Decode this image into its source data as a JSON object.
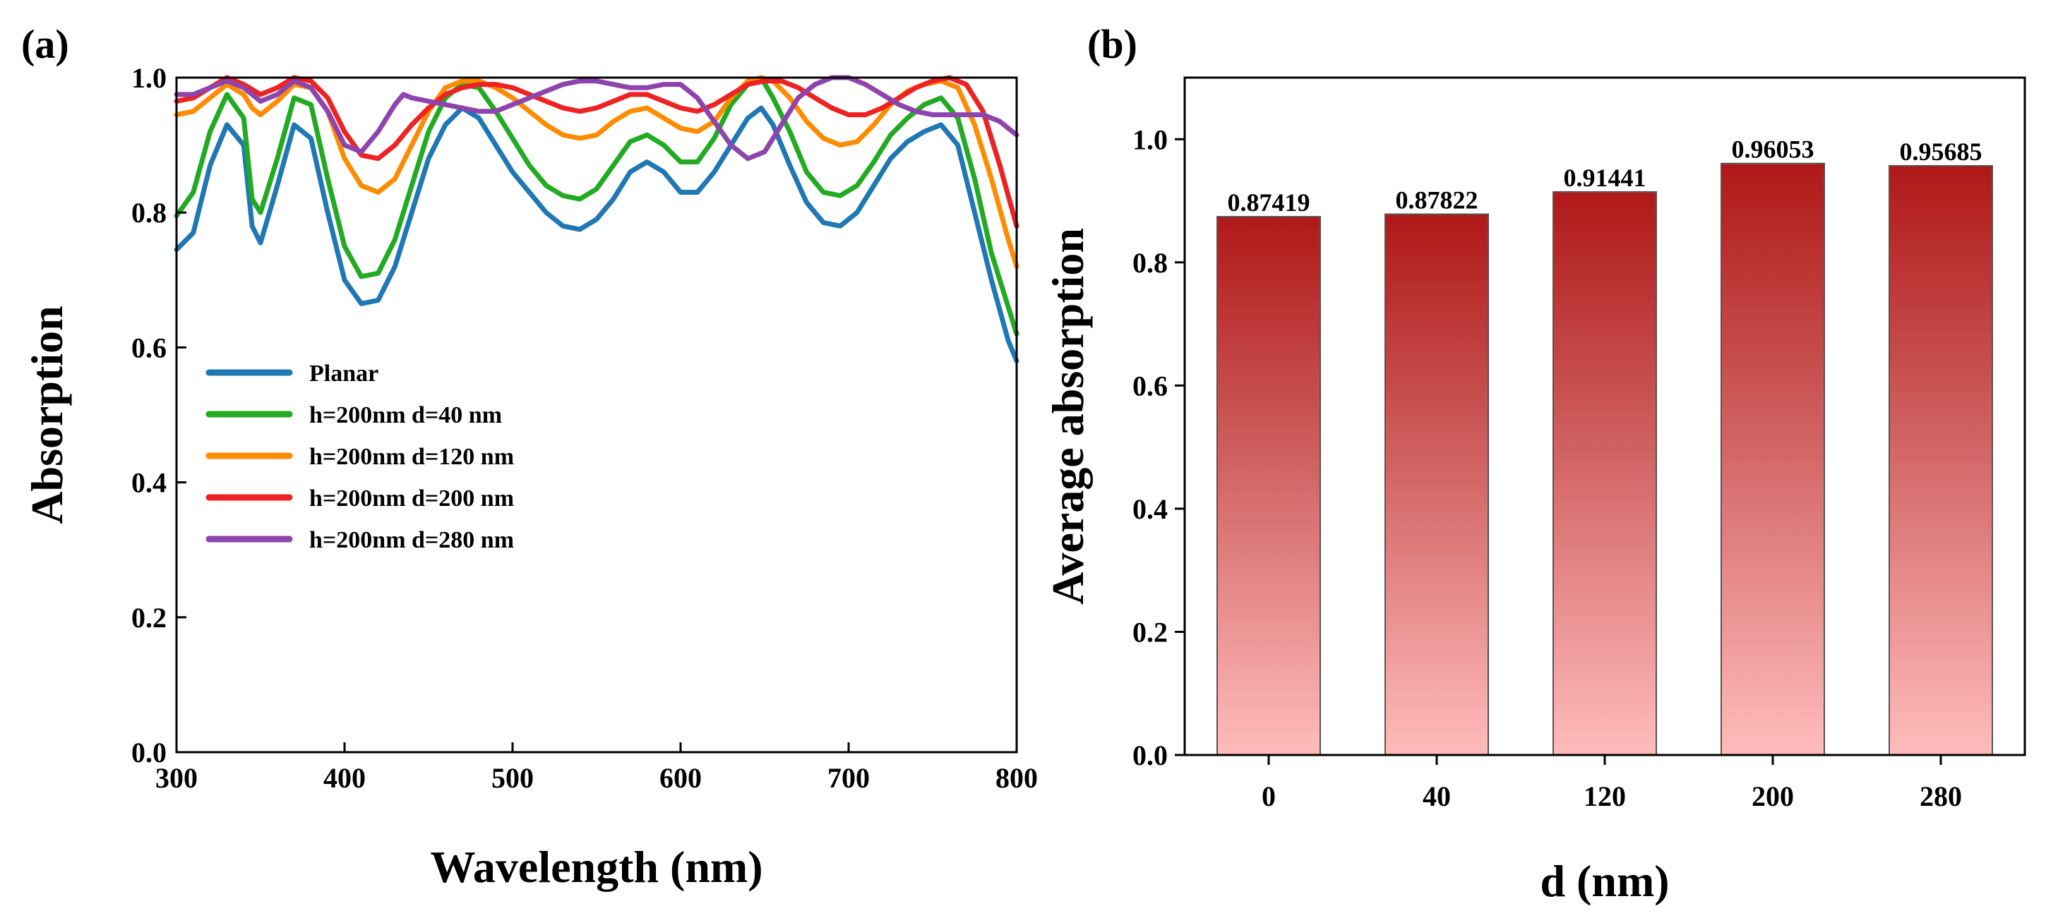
{
  "chart_data": [
    {
      "type": "line",
      "panel_label": "(a)",
      "xlabel": "Wavelength (nm)",
      "ylabel": "Absorption",
      "xlim": [
        300,
        800
      ],
      "ylim": [
        0.0,
        1.0
      ],
      "xticks": [
        300,
        400,
        500,
        600,
        700,
        800
      ],
      "yticks": [
        0.0,
        0.2,
        0.4,
        0.6,
        0.8,
        1.0
      ],
      "legend_position": "center-left",
      "series": [
        {
          "name": "Planar",
          "color": "#1f77b4",
          "points": [
            [
              300,
              0.745
            ],
            [
              310,
              0.77
            ],
            [
              320,
              0.87
            ],
            [
              330,
              0.93
            ],
            [
              340,
              0.9
            ],
            [
              345,
              0.78
            ],
            [
              350,
              0.755
            ],
            [
              360,
              0.84
            ],
            [
              370,
              0.93
            ],
            [
              380,
              0.91
            ],
            [
              390,
              0.8
            ],
            [
              400,
              0.7
            ],
            [
              410,
              0.665
            ],
            [
              420,
              0.67
            ],
            [
              430,
              0.72
            ],
            [
              440,
              0.8
            ],
            [
              450,
              0.88
            ],
            [
              460,
              0.93
            ],
            [
              470,
              0.955
            ],
            [
              480,
              0.94
            ],
            [
              490,
              0.9
            ],
            [
              500,
              0.86
            ],
            [
              510,
              0.83
            ],
            [
              520,
              0.8
            ],
            [
              530,
              0.78
            ],
            [
              540,
              0.775
            ],
            [
              550,
              0.79
            ],
            [
              560,
              0.82
            ],
            [
              570,
              0.86
            ],
            [
              580,
              0.875
            ],
            [
              590,
              0.86
            ],
            [
              600,
              0.83
            ],
            [
              610,
              0.83
            ],
            [
              620,
              0.86
            ],
            [
              630,
              0.9
            ],
            [
              640,
              0.94
            ],
            [
              648,
              0.955
            ],
            [
              655,
              0.93
            ],
            [
              665,
              0.87
            ],
            [
              675,
              0.815
            ],
            [
              685,
              0.785
            ],
            [
              695,
              0.78
            ],
            [
              705,
              0.8
            ],
            [
              715,
              0.84
            ],
            [
              725,
              0.88
            ],
            [
              735,
              0.905
            ],
            [
              745,
              0.92
            ],
            [
              755,
              0.93
            ],
            [
              765,
              0.9
            ],
            [
              775,
              0.8
            ],
            [
              785,
              0.7
            ],
            [
              795,
              0.61
            ],
            [
              800,
              0.58
            ]
          ]
        },
        {
          "name": "h=200nm d=40 nm",
          "color": "#22aa22",
          "points": [
            [
              300,
              0.795
            ],
            [
              310,
              0.83
            ],
            [
              320,
              0.92
            ],
            [
              330,
              0.975
            ],
            [
              340,
              0.94
            ],
            [
              345,
              0.82
            ],
            [
              350,
              0.8
            ],
            [
              360,
              0.88
            ],
            [
              370,
              0.97
            ],
            [
              380,
              0.96
            ],
            [
              390,
              0.85
            ],
            [
              400,
              0.75
            ],
            [
              410,
              0.705
            ],
            [
              420,
              0.71
            ],
            [
              430,
              0.76
            ],
            [
              440,
              0.84
            ],
            [
              450,
              0.92
            ],
            [
              460,
              0.97
            ],
            [
              470,
              0.99
            ],
            [
              480,
              0.985
            ],
            [
              490,
              0.95
            ],
            [
              500,
              0.91
            ],
            [
              510,
              0.87
            ],
            [
              520,
              0.84
            ],
            [
              530,
              0.825
            ],
            [
              540,
              0.82
            ],
            [
              550,
              0.835
            ],
            [
              560,
              0.87
            ],
            [
              570,
              0.905
            ],
            [
              580,
              0.915
            ],
            [
              590,
              0.9
            ],
            [
              600,
              0.875
            ],
            [
              610,
              0.875
            ],
            [
              620,
              0.91
            ],
            [
              630,
              0.96
            ],
            [
              640,
              0.99
            ],
            [
              648,
              1.0
            ],
            [
              655,
              0.97
            ],
            [
              665,
              0.92
            ],
            [
              675,
              0.86
            ],
            [
              685,
              0.83
            ],
            [
              695,
              0.825
            ],
            [
              705,
              0.84
            ],
            [
              715,
              0.875
            ],
            [
              725,
              0.915
            ],
            [
              735,
              0.94
            ],
            [
              745,
              0.96
            ],
            [
              755,
              0.97
            ],
            [
              765,
              0.94
            ],
            [
              775,
              0.85
            ],
            [
              785,
              0.74
            ],
            [
              795,
              0.66
            ],
            [
              800,
              0.62
            ]
          ]
        },
        {
          "name": "h=200nm d=120 nm",
          "color": "#ff8c00",
          "points": [
            [
              300,
              0.945
            ],
            [
              310,
              0.95
            ],
            [
              320,
              0.97
            ],
            [
              330,
              0.99
            ],
            [
              340,
              0.975
            ],
            [
              345,
              0.955
            ],
            [
              350,
              0.945
            ],
            [
              360,
              0.965
            ],
            [
              370,
              0.99
            ],
            [
              380,
              0.985
            ],
            [
              390,
              0.95
            ],
            [
              400,
              0.88
            ],
            [
              410,
              0.84
            ],
            [
              420,
              0.83
            ],
            [
              430,
              0.85
            ],
            [
              440,
              0.9
            ],
            [
              450,
              0.95
            ],
            [
              460,
              0.985
            ],
            [
              470,
              0.995
            ],
            [
              480,
              0.995
            ],
            [
              490,
              0.985
            ],
            [
              500,
              0.97
            ],
            [
              510,
              0.95
            ],
            [
              520,
              0.93
            ],
            [
              530,
              0.915
            ],
            [
              540,
              0.91
            ],
            [
              550,
              0.915
            ],
            [
              560,
              0.935
            ],
            [
              570,
              0.95
            ],
            [
              580,
              0.955
            ],
            [
              590,
              0.94
            ],
            [
              600,
              0.925
            ],
            [
              610,
              0.92
            ],
            [
              620,
              0.935
            ],
            [
              630,
              0.97
            ],
            [
              640,
              0.995
            ],
            [
              648,
              1.0
            ],
            [
              655,
              0.995
            ],
            [
              665,
              0.97
            ],
            [
              675,
              0.935
            ],
            [
              685,
              0.91
            ],
            [
              695,
              0.9
            ],
            [
              705,
              0.905
            ],
            [
              715,
              0.93
            ],
            [
              725,
              0.96
            ],
            [
              735,
              0.98
            ],
            [
              745,
              0.99
            ],
            [
              755,
              0.995
            ],
            [
              765,
              0.985
            ],
            [
              775,
              0.93
            ],
            [
              785,
              0.85
            ],
            [
              795,
              0.76
            ],
            [
              800,
              0.72
            ]
          ]
        },
        {
          "name": "h=200nm d=200 nm",
          "color": "#ee2222",
          "points": [
            [
              300,
              0.965
            ],
            [
              310,
              0.97
            ],
            [
              320,
              0.985
            ],
            [
              330,
              1.0
            ],
            [
              340,
              0.99
            ],
            [
              350,
              0.975
            ],
            [
              360,
              0.985
            ],
            [
              370,
              1.0
            ],
            [
              380,
              0.995
            ],
            [
              390,
              0.97
            ],
            [
              400,
              0.92
            ],
            [
              410,
              0.885
            ],
            [
              420,
              0.88
            ],
            [
              430,
              0.9
            ],
            [
              440,
              0.93
            ],
            [
              450,
              0.955
            ],
            [
              460,
              0.975
            ],
            [
              470,
              0.985
            ],
            [
              480,
              0.99
            ],
            [
              490,
              0.99
            ],
            [
              500,
              0.985
            ],
            [
              510,
              0.975
            ],
            [
              520,
              0.965
            ],
            [
              530,
              0.955
            ],
            [
              540,
              0.95
            ],
            [
              550,
              0.955
            ],
            [
              560,
              0.965
            ],
            [
              570,
              0.975
            ],
            [
              580,
              0.975
            ],
            [
              590,
              0.965
            ],
            [
              600,
              0.955
            ],
            [
              610,
              0.95
            ],
            [
              620,
              0.96
            ],
            [
              630,
              0.975
            ],
            [
              640,
              0.99
            ],
            [
              650,
              0.995
            ],
            [
              660,
              0.995
            ],
            [
              670,
              0.985
            ],
            [
              680,
              0.97
            ],
            [
              690,
              0.955
            ],
            [
              700,
              0.945
            ],
            [
              710,
              0.945
            ],
            [
              720,
              0.955
            ],
            [
              730,
              0.97
            ],
            [
              740,
              0.985
            ],
            [
              750,
              0.995
            ],
            [
              760,
              1.0
            ],
            [
              770,
              0.99
            ],
            [
              780,
              0.95
            ],
            [
              790,
              0.87
            ],
            [
              800,
              0.78
            ]
          ]
        },
        {
          "name": "h=200nm d=280 nm",
          "color": "#8e44ad",
          "points": [
            [
              300,
              0.975
            ],
            [
              310,
              0.975
            ],
            [
              320,
              0.985
            ],
            [
              330,
              0.995
            ],
            [
              340,
              0.985
            ],
            [
              350,
              0.965
            ],
            [
              360,
              0.975
            ],
            [
              370,
              0.995
            ],
            [
              380,
              0.985
            ],
            [
              390,
              0.95
            ],
            [
              400,
              0.9
            ],
            [
              410,
              0.89
            ],
            [
              420,
              0.92
            ],
            [
              430,
              0.96
            ],
            [
              435,
              0.975
            ],
            [
              440,
              0.97
            ],
            [
              450,
              0.965
            ],
            [
              460,
              0.96
            ],
            [
              470,
              0.955
            ],
            [
              480,
              0.95
            ],
            [
              490,
              0.95
            ],
            [
              500,
              0.96
            ],
            [
              510,
              0.97
            ],
            [
              520,
              0.98
            ],
            [
              530,
              0.99
            ],
            [
              540,
              0.995
            ],
            [
              550,
              0.995
            ],
            [
              560,
              0.99
            ],
            [
              570,
              0.985
            ],
            [
              580,
              0.985
            ],
            [
              590,
              0.99
            ],
            [
              600,
              0.99
            ],
            [
              610,
              0.97
            ],
            [
              620,
              0.935
            ],
            [
              630,
              0.9
            ],
            [
              640,
              0.88
            ],
            [
              650,
              0.89
            ],
            [
              660,
              0.93
            ],
            [
              670,
              0.97
            ],
            [
              680,
              0.99
            ],
            [
              690,
              1.0
            ],
            [
              700,
              1.0
            ],
            [
              710,
              0.99
            ],
            [
              720,
              0.975
            ],
            [
              730,
              0.96
            ],
            [
              740,
              0.95
            ],
            [
              750,
              0.945
            ],
            [
              760,
              0.945
            ],
            [
              770,
              0.945
            ],
            [
              780,
              0.945
            ],
            [
              790,
              0.935
            ],
            [
              800,
              0.915
            ]
          ]
        }
      ]
    },
    {
      "type": "bar",
      "panel_label": "(b)",
      "xlabel": "d (nm)",
      "ylabel": "Average absorption",
      "categories": [
        "0",
        "40",
        "120",
        "200",
        "280"
      ],
      "values": [
        0.87419,
        0.87822,
        0.91441,
        0.96053,
        0.95685
      ],
      "value_labels": [
        "0.87419",
        "0.87822",
        "0.91441",
        "0.96053",
        "0.95685"
      ],
      "ylim": [
        0.0,
        1.1
      ],
      "yticks": [
        0.0,
        0.2,
        0.4,
        0.6,
        0.8,
        1.0
      ],
      "bar_gradient_top": "#b01818",
      "bar_gradient_bottom": "#ffbcbc"
    }
  ]
}
